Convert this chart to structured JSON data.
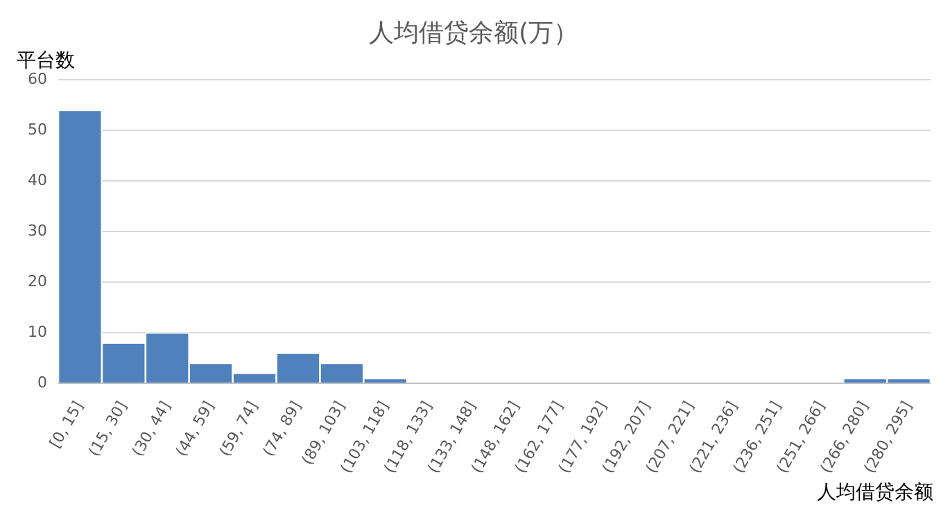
{
  "chart_data": {
    "type": "bar",
    "title": "人均借贷余额(万）",
    "xlabel": "人均借贷余额",
    "ylabel": "平台数",
    "categories": [
      "[0, 15]",
      "(15, 30]",
      "(30, 44]",
      "(44, 59]",
      "(59, 74]",
      "(74, 89]",
      "(89, 103]",
      "(103, 118]",
      "(118, 133]",
      "(133, 148]",
      "(148, 162]",
      "(162, 177]",
      "(177, 192]",
      "(192, 207]",
      "(207, 221]",
      "(221, 236]",
      "(236, 251]",
      "(251, 266]",
      "(266, 280]",
      "(280, 295]"
    ],
    "series": [
      {
        "color": "#4f81bd",
        "values": [
          54,
          8,
          10,
          4,
          2,
          6,
          4,
          1,
          0,
          0,
          0,
          0,
          0,
          0,
          0,
          0,
          0,
          0,
          1,
          1
        ]
      }
    ],
    "ylim": [
      0,
      60
    ],
    "yticks": [
      0,
      10,
      20,
      30,
      40,
      50,
      60
    ],
    "grid": "y",
    "legend": false
  }
}
